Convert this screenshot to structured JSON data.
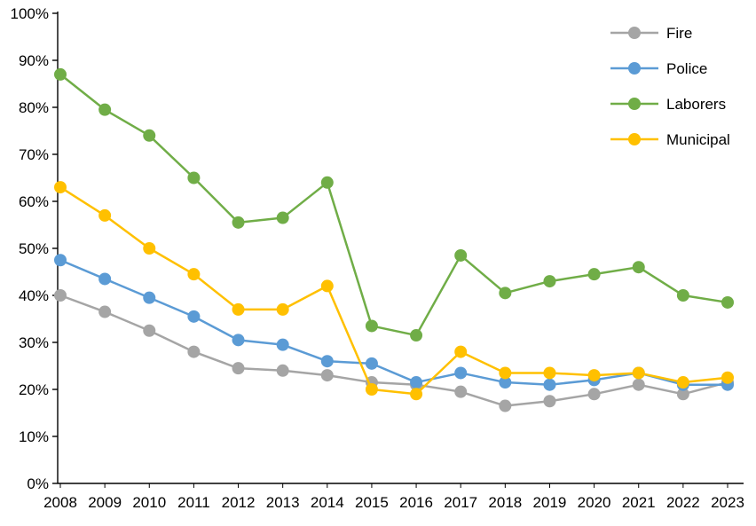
{
  "chart_data": {
    "type": "line",
    "title": "",
    "xlabel": "",
    "ylabel": "",
    "x": [
      "2008",
      "2009",
      "2010",
      "2011",
      "2012",
      "2013",
      "2014",
      "2015",
      "2016",
      "2017",
      "2018",
      "2019",
      "2020",
      "2021",
      "2022",
      "2023"
    ],
    "ylim": [
      0,
      100
    ],
    "ytick_step": 10,
    "ytick_labels": [
      "0%",
      "10%",
      "20%",
      "30%",
      "40%",
      "50%",
      "60%",
      "70%",
      "80%",
      "90%",
      "100%"
    ],
    "grid": false,
    "legend_position": "top-right",
    "marker": "circle",
    "axis_color": "#000000",
    "series": [
      {
        "name": "Fire",
        "color": "#a5a5a5",
        "values": [
          40,
          36.5,
          32.5,
          28,
          24.5,
          24,
          23,
          21.5,
          21,
          19.5,
          16.5,
          17.5,
          19,
          21,
          19,
          21.5
        ]
      },
      {
        "name": "Police",
        "color": "#5b9bd5",
        "values": [
          47.5,
          43.5,
          39.5,
          35.5,
          30.5,
          29.5,
          26,
          25.5,
          21.5,
          23.5,
          21.5,
          21,
          22,
          23.5,
          21,
          21
        ]
      },
      {
        "name": "Laborers",
        "color": "#70ad47",
        "values": [
          87,
          79.5,
          74,
          65,
          55.5,
          56.5,
          64,
          33.5,
          31.5,
          48.5,
          40.5,
          43,
          44.5,
          46,
          40,
          38.5
        ]
      },
      {
        "name": "Municipal",
        "color": "#ffc000",
        "values": [
          63,
          57,
          50,
          44.5,
          37,
          37,
          42,
          20,
          19,
          28,
          23.5,
          23.5,
          23,
          23.5,
          21.5,
          22.5
        ]
      }
    ]
  }
}
